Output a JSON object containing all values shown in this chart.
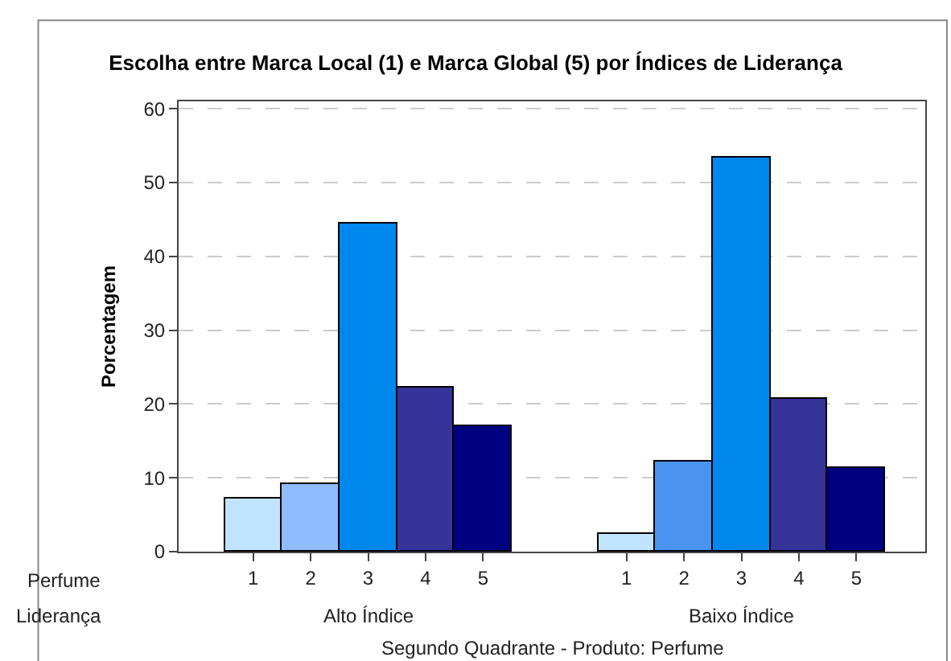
{
  "chart_data": {
    "type": "bar",
    "title": "Escolha entre Marca Local (1) e Marca Global (5) por Índices de Liderança",
    "categories": [
      "1",
      "2",
      "3",
      "4",
      "5",
      "1",
      "2",
      "3",
      "4",
      "5"
    ],
    "series": [
      {
        "name": "Alto Índice",
        "colors": [
          "#c0e4ff",
          "#8fbcff",
          "#0088ee",
          "#363399",
          "#000080",
          "#c0e4ff",
          "#8fbcff",
          "#0088ee",
          "#363399",
          "#000080"
        ],
        "values": [
          7.1,
          9.1,
          44.4,
          22.2,
          16.9,
          null,
          null,
          null,
          null,
          null
        ]
      },
      {
        "name": "Baixo Índice",
        "colors": [
          "#c0e4ff",
          "#4a94f0",
          "#0088ee",
          "#363399",
          "#000080",
          "#c0e4ff",
          "#4a94f0",
          "#0088ee",
          "#363399",
          "#000080"
        ],
        "values": [
          null,
          null,
          null,
          null,
          null,
          2.5,
          12.1,
          53.3,
          20.8,
          11.3
        ]
      }
    ],
    "xlabel": "Segundo Quadrante - Produto: Perfume",
    "ylabel": "Porcentagem",
    "annotations": [
      "Perfume",
      "Liderança"
    ],
    "ylim": [
      0,
      61
    ],
    "yticks": [
      0,
      10,
      20,
      30,
      40,
      50,
      60
    ],
    "grid": "y",
    "legend": false
  }
}
